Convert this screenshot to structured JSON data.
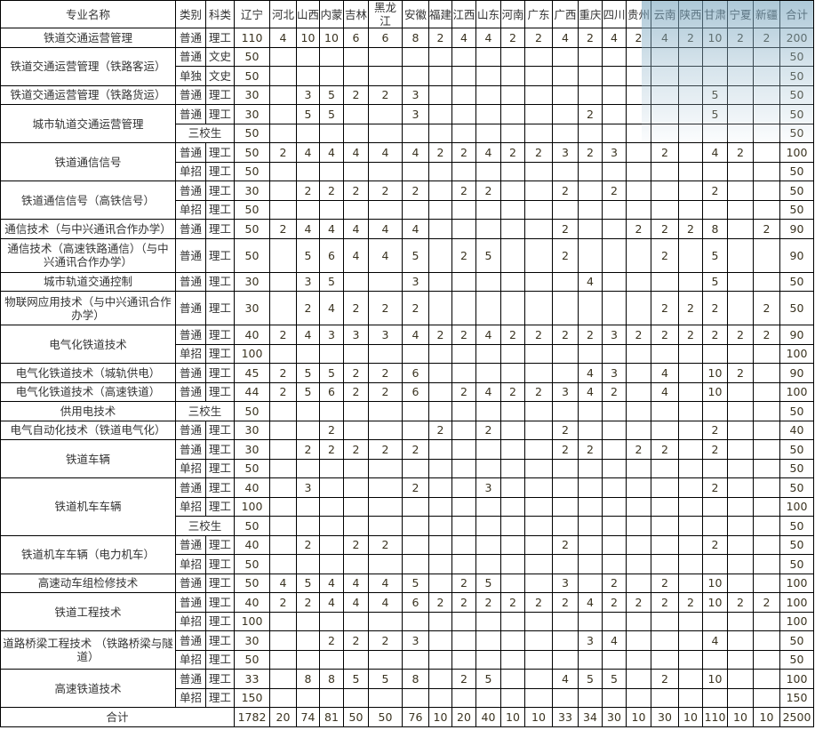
{
  "header": {
    "major": "专业名称",
    "category": "类别",
    "subject": "科类",
    "provinces": [
      "辽宁",
      "河北",
      "山西",
      "内蒙",
      "吉林",
      "黑龙江",
      "安徽",
      "福建",
      "江西",
      "山东",
      "河南",
      "广东",
      "广西",
      "重庆",
      "四川",
      "贵州",
      "云南",
      "陕西",
      "甘肃",
      "宁夏",
      "新疆"
    ],
    "total": "合计"
  },
  "majors": [
    {
      "name": "铁道交通运营管理",
      "rows": [
        {
          "category": "普通",
          "subject": "理工",
          "values": [
            "110",
            "4",
            "10",
            "10",
            "6",
            "6",
            "8",
            "2",
            "4",
            "4",
            "2",
            "2",
            "4",
            "2",
            "4",
            "2",
            "4",
            "2",
            "10",
            "2",
            "2"
          ],
          "total": "200"
        }
      ]
    },
    {
      "name": "铁道交通运营管理（铁路客运）",
      "rows": [
        {
          "category": "普通",
          "subject": "文史",
          "values": [
            "50",
            "",
            "",
            "",
            "",
            "",
            "",
            "",
            "",
            "",
            "",
            "",
            "",
            "",
            "",
            "",
            "",
            "",
            "",
            "",
            ""
          ],
          "total": "50"
        },
        {
          "category": "单独",
          "subject": "文史",
          "values": [
            "50",
            "",
            "",
            "",
            "",
            "",
            "",
            "",
            "",
            "",
            "",
            "",
            "",
            "",
            "",
            "",
            "",
            "",
            "",
            "",
            ""
          ],
          "total": "50"
        }
      ]
    },
    {
      "name": "铁道交通运营管理（铁路货运）",
      "rows": [
        {
          "category": "普通",
          "subject": "理工",
          "values": [
            "30",
            "",
            "3",
            "5",
            "2",
            "2",
            "3",
            "",
            "",
            "",
            "",
            "",
            "",
            "",
            "",
            "",
            "",
            "",
            "5",
            "",
            ""
          ],
          "total": "50"
        }
      ]
    },
    {
      "name": "城市轨道交通运营管理",
      "rows": [
        {
          "category": "普通",
          "subject": "理工",
          "values": [
            "30",
            "",
            "5",
            "5",
            "",
            "",
            "3",
            "",
            "",
            "",
            "",
            "",
            "",
            "2",
            "",
            "",
            "",
            "",
            "5",
            "",
            ""
          ],
          "total": "50"
        },
        {
          "category": "三校生",
          "values": [
            "50",
            "",
            "",
            "",
            "",
            "",
            "",
            "",
            "",
            "",
            "",
            "",
            "",
            "",
            "",
            "",
            "",
            "",
            "",
            "",
            ""
          ],
          "total": "50"
        }
      ]
    },
    {
      "name": "铁道通信信号",
      "rows": [
        {
          "category": "普通",
          "subject": "理工",
          "values": [
            "50",
            "2",
            "4",
            "4",
            "4",
            "4",
            "4",
            "2",
            "2",
            "4",
            "2",
            "2",
            "3",
            "2",
            "3",
            "",
            "2",
            "",
            "4",
            "2",
            ""
          ],
          "total": "100"
        },
        {
          "category": "单招",
          "subject": "理工",
          "values": [
            "50",
            "",
            "",
            "",
            "",
            "",
            "",
            "",
            "",
            "",
            "",
            "",
            "",
            "",
            "",
            "",
            "",
            "",
            "",
            "",
            ""
          ],
          "total": "50"
        }
      ]
    },
    {
      "name": "铁道通信信号（高铁信号）",
      "rows": [
        {
          "category": "普通",
          "subject": "理工",
          "values": [
            "30",
            "",
            "2",
            "2",
            "2",
            "2",
            "2",
            "",
            "2",
            "2",
            "",
            "",
            "2",
            "",
            "2",
            "",
            "",
            "",
            "2",
            "",
            ""
          ],
          "total": "50"
        },
        {
          "category": "单招",
          "subject": "理工",
          "values": [
            "50",
            "",
            "",
            "",
            "",
            "",
            "",
            "",
            "",
            "",
            "",
            "",
            "",
            "",
            "",
            "",
            "",
            "",
            "",
            "",
            ""
          ],
          "total": "50"
        }
      ]
    },
    {
      "name": "通信技术（与中兴通讯合作办学）",
      "rows": [
        {
          "category": "普通",
          "subject": "理工",
          "values": [
            "50",
            "2",
            "4",
            "4",
            "4",
            "4",
            "4",
            "",
            "",
            "",
            "",
            "",
            "2",
            "",
            "",
            "2",
            "2",
            "2",
            "8",
            "",
            "2"
          ],
          "total": "90"
        }
      ]
    },
    {
      "name": "通信技术（高速铁路通信）（与中兴通讯合作办学）",
      "tall": true,
      "rows": [
        {
          "category": "普通",
          "subject": "理工",
          "values": [
            "50",
            "",
            "5",
            "6",
            "4",
            "4",
            "5",
            "",
            "2",
            "5",
            "",
            "",
            "2",
            "",
            "",
            "",
            "2",
            "",
            "5",
            "",
            ""
          ],
          "total": "90"
        }
      ]
    },
    {
      "name": "城市轨道交通控制",
      "rows": [
        {
          "category": "普通",
          "subject": "理工",
          "values": [
            "30",
            "",
            "3",
            "5",
            "",
            "",
            "3",
            "",
            "",
            "",
            "",
            "",
            "",
            "4",
            "",
            "",
            "",
            "",
            "5",
            "",
            ""
          ],
          "total": "50"
        }
      ]
    },
    {
      "name": "物联网应用技术（与中兴通讯合作办学）",
      "tall": true,
      "rows": [
        {
          "category": "普通",
          "subject": "理工",
          "values": [
            "30",
            "",
            "2",
            "4",
            "2",
            "2",
            "2",
            "",
            "",
            "",
            "",
            "",
            "",
            "",
            "",
            "",
            "2",
            "2",
            "2",
            "",
            "2"
          ],
          "total": "50"
        }
      ]
    },
    {
      "name": "电气化铁道技术",
      "rows": [
        {
          "category": "普通",
          "subject": "理工",
          "values": [
            "40",
            "2",
            "4",
            "3",
            "3",
            "3",
            "4",
            "2",
            "2",
            "4",
            "2",
            "2",
            "2",
            "2",
            "3",
            "2",
            "2",
            "2",
            "2",
            "2",
            "2"
          ],
          "total": "90"
        },
        {
          "category": "单招",
          "subject": "理工",
          "values": [
            "100",
            "",
            "",
            "",
            "",
            "",
            "",
            "",
            "",
            "",
            "",
            "",
            "",
            "",
            "",
            "",
            "",
            "",
            "",
            "",
            ""
          ],
          "total": "100"
        }
      ]
    },
    {
      "name": "电气化铁道技术（城轨供电）",
      "rows": [
        {
          "category": "普通",
          "subject": "理工",
          "values": [
            "45",
            "2",
            "5",
            "5",
            "2",
            "2",
            "6",
            "",
            "",
            "",
            "",
            "",
            "",
            "4",
            "3",
            "",
            "4",
            "",
            "10",
            "2",
            ""
          ],
          "total": "90"
        }
      ]
    },
    {
      "name": "电气化铁道技术（高速铁道）",
      "rows": [
        {
          "category": "普通",
          "subject": "理工",
          "values": [
            "44",
            "2",
            "5",
            "6",
            "2",
            "2",
            "6",
            "",
            "2",
            "4",
            "2",
            "2",
            "3",
            "4",
            "2",
            "",
            "4",
            "",
            "10",
            "",
            ""
          ],
          "total": "100"
        }
      ]
    },
    {
      "name": "供用电技术",
      "rows": [
        {
          "category": "三校生",
          "values": [
            "50",
            "",
            "",
            "",
            "",
            "",
            "",
            "",
            "",
            "",
            "",
            "",
            "",
            "",
            "",
            "",
            "",
            "",
            "",
            "",
            ""
          ],
          "total": "50"
        }
      ]
    },
    {
      "name": "电气自动化技术（铁道电气化）",
      "rows": [
        {
          "category": "普通",
          "subject": "理工",
          "values": [
            "30",
            "",
            "",
            "2",
            "",
            "",
            "",
            "2",
            "",
            "2",
            "",
            "",
            "2",
            "",
            "",
            "",
            "",
            "",
            "2",
            "",
            ""
          ],
          "total": "40"
        }
      ]
    },
    {
      "name": "铁道车辆",
      "rows": [
        {
          "category": "普通",
          "subject": "理工",
          "values": [
            "30",
            "",
            "2",
            "2",
            "2",
            "2",
            "2",
            "",
            "",
            "",
            "",
            "",
            "2",
            "2",
            "",
            "2",
            "2",
            "",
            "2",
            "",
            ""
          ],
          "total": "50"
        },
        {
          "category": "单招",
          "subject": "理工",
          "values": [
            "50",
            "",
            "",
            "",
            "",
            "",
            "",
            "",
            "",
            "",
            "",
            "",
            "",
            "",
            "",
            "",
            "",
            "",
            "",
            "",
            ""
          ],
          "total": "50"
        }
      ]
    },
    {
      "name": "铁道机车车辆",
      "rows": [
        {
          "category": "普通",
          "subject": "理工",
          "values": [
            "40",
            "",
            "3",
            "",
            "",
            "",
            "2",
            "",
            "",
            "3",
            "",
            "",
            "",
            "",
            "",
            "",
            "",
            "",
            "2",
            "",
            ""
          ],
          "total": "50"
        },
        {
          "category": "单招",
          "subject": "理工",
          "values": [
            "100",
            "",
            "",
            "",
            "",
            "",
            "",
            "",
            "",
            "",
            "",
            "",
            "",
            "",
            "",
            "",
            "",
            "",
            "",
            "",
            ""
          ],
          "total": "100"
        },
        {
          "category": "三校生",
          "values": [
            "50",
            "",
            "",
            "",
            "",
            "",
            "",
            "",
            "",
            "",
            "",
            "",
            "",
            "",
            "",
            "",
            "",
            "",
            "",
            "",
            ""
          ],
          "total": "50"
        }
      ]
    },
    {
      "name": "铁道机车车辆（电力机车）",
      "rows": [
        {
          "category": "普通",
          "subject": "理工",
          "values": [
            "40",
            "",
            "2",
            "",
            "2",
            "2",
            "",
            "",
            "",
            "",
            "",
            "",
            "2",
            "",
            "",
            "",
            "",
            "",
            "2",
            "",
            ""
          ],
          "total": "50"
        },
        {
          "category": "单招",
          "subject": "理工",
          "values": [
            "50",
            "",
            "",
            "",
            "",
            "",
            "",
            "",
            "",
            "",
            "",
            "",
            "",
            "",
            "",
            "",
            "",
            "",
            "",
            "",
            ""
          ],
          "total": "50"
        }
      ]
    },
    {
      "name": "高速动车组检修技术",
      "rows": [
        {
          "category": "普通",
          "subject": "理工",
          "values": [
            "50",
            "4",
            "5",
            "4",
            "4",
            "4",
            "5",
            "",
            "2",
            "5",
            "",
            "",
            "3",
            "",
            "2",
            "",
            "2",
            "",
            "10",
            "",
            ""
          ],
          "total": "100"
        }
      ]
    },
    {
      "name": "铁道工程技术",
      "rows": [
        {
          "category": "普通",
          "subject": "理工",
          "values": [
            "40",
            "2",
            "2",
            "4",
            "4",
            "4",
            "6",
            "2",
            "2",
            "2",
            "2",
            "2",
            "2",
            "4",
            "2",
            "2",
            "2",
            "2",
            "10",
            "2",
            "2"
          ],
          "total": "100"
        },
        {
          "category": "单招",
          "subject": "理工",
          "values": [
            "100",
            "",
            "",
            "",
            "",
            "",
            "",
            "",
            "",
            "",
            "",
            "",
            "",
            "",
            "",
            "",
            "",
            "",
            "",
            "",
            ""
          ],
          "total": "100"
        }
      ]
    },
    {
      "name": "道路桥梁工程技术 （铁路桥梁与隧道）",
      "rows": [
        {
          "category": "普通",
          "subject": "理工",
          "values": [
            "30",
            "",
            "",
            "2",
            "2",
            "2",
            "3",
            "",
            "",
            "",
            "",
            "",
            "",
            "3",
            "4",
            "",
            "",
            "",
            "4",
            "",
            ""
          ],
          "total": "50"
        },
        {
          "category": "单招",
          "subject": "理工",
          "values": [
            "50",
            "",
            "",
            "",
            "",
            "",
            "",
            "",
            "",
            "",
            "",
            "",
            "",
            "",
            "",
            "",
            "",
            "",
            "",
            "",
            ""
          ],
          "total": "50"
        }
      ]
    },
    {
      "name": "高速铁道技术",
      "rows": [
        {
          "category": "普通",
          "subject": "理工",
          "values": [
            "33",
            "",
            "8",
            "8",
            "5",
            "5",
            "8",
            "",
            "2",
            "5",
            "",
            "",
            "4",
            "5",
            "5",
            "",
            "2",
            "",
            "10",
            "",
            ""
          ],
          "total": "100"
        },
        {
          "category": "单招",
          "subject": "理工",
          "values": [
            "150",
            "",
            "",
            "",
            "",
            "",
            "",
            "",
            "",
            "",
            "",
            "",
            "",
            "",
            "",
            "",
            "",
            "",
            "",
            "",
            ""
          ],
          "total": "150"
        }
      ]
    }
  ],
  "summary": {
    "label": "合计",
    "values": [
      "1782",
      "20",
      "74",
      "81",
      "50",
      "50",
      "76",
      "10",
      "20",
      "40",
      "10",
      "10",
      "33",
      "34",
      "30",
      "10",
      "30",
      "10",
      "110",
      "10",
      "10"
    ],
    "total": "2500"
  },
  "colors": {
    "border": "#000000",
    "text": "#333333",
    "overlay": "#86aec4"
  }
}
